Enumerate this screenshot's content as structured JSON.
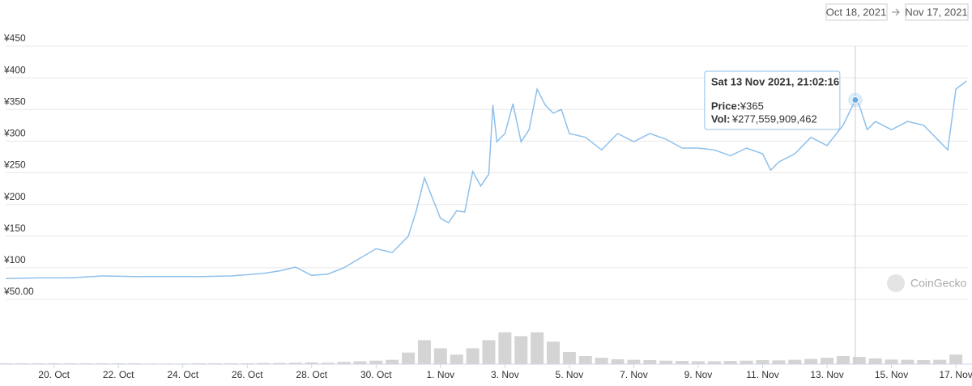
{
  "chart_data": {
    "type": "line",
    "range": [
      "Oct 18, 2021",
      "Nov 17, 2021"
    ],
    "watermark": "CoinGecko",
    "xlim": [
      "2021-10-18T12:00",
      "2021-11-17T09:00"
    ],
    "xticks": [
      {
        "value": "2021-10-20T00:00",
        "label": "20. Oct"
      },
      {
        "value": "2021-10-22T00:00",
        "label": "22. Oct"
      },
      {
        "value": "2021-10-24T00:00",
        "label": "24. Oct"
      },
      {
        "value": "2021-10-26T00:00",
        "label": "26. Oct"
      },
      {
        "value": "2021-10-28T00:00",
        "label": "28. Oct"
      },
      {
        "value": "2021-10-30T00:00",
        "label": "30. Oct"
      },
      {
        "value": "2021-11-01T00:00",
        "label": "1. Nov"
      },
      {
        "value": "2021-11-03T00:00",
        "label": "3. Nov"
      },
      {
        "value": "2021-11-05T00:00",
        "label": "5. Nov"
      },
      {
        "value": "2021-11-07T00:00",
        "label": "7. Nov"
      },
      {
        "value": "2021-11-09T00:00",
        "label": "9. Nov"
      },
      {
        "value": "2021-11-11T00:00",
        "label": "11. Nov"
      },
      {
        "value": "2021-11-13T00:00",
        "label": "13. Nov"
      },
      {
        "value": "2021-11-15T00:00",
        "label": "15. Nov"
      },
      {
        "value": "2021-11-17T00:00",
        "label": "17. Nov"
      }
    ],
    "ylim": [
      50,
      450
    ],
    "yticks": [
      {
        "value": 50,
        "label": "¥50.00"
      },
      {
        "value": 100,
        "label": "¥100"
      },
      {
        "value": 150,
        "label": "¥150"
      },
      {
        "value": 200,
        "label": "¥200"
      },
      {
        "value": 250,
        "label": "¥250"
      },
      {
        "value": 300,
        "label": "¥300"
      },
      {
        "value": 350,
        "label": "¥350"
      },
      {
        "value": 400,
        "label": "¥400"
      },
      {
        "value": 450,
        "label": "¥450"
      }
    ],
    "y2lim": [
      0,
      2800000000000.0
    ],
    "grid": true,
    "series": [
      {
        "type": "line",
        "color": "#8fc0ea",
        "x": [
          "2021-10-18T12:00",
          "2021-10-19T12:00",
          "2021-10-20T12:00",
          "2021-10-21T12:00",
          "2021-10-22T12:00",
          "2021-10-23T12:00",
          "2021-10-24T12:00",
          "2021-10-25T12:00",
          "2021-10-26T12:00",
          "2021-10-27T00:00",
          "2021-10-27T12:00",
          "2021-10-28T00:00",
          "2021-10-28T12:00",
          "2021-10-29T00:00",
          "2021-10-29T12:00",
          "2021-10-30T00:00",
          "2021-10-30T12:00",
          "2021-10-31T00:00",
          "2021-10-31T06:00",
          "2021-10-31T12:00",
          "2021-10-31T18:00",
          "2021-11-01T00:00",
          "2021-11-01T06:00",
          "2021-11-01T12:00",
          "2021-11-01T18:00",
          "2021-11-02T00:00",
          "2021-11-02T06:00",
          "2021-11-02T12:00",
          "2021-11-02T15:00",
          "2021-11-02T18:00",
          "2021-11-03T00:00",
          "2021-11-03T06:00",
          "2021-11-03T12:00",
          "2021-11-03T18:00",
          "2021-11-04T00:00",
          "2021-11-04T06:00",
          "2021-11-04T12:00",
          "2021-11-04T18:00",
          "2021-11-05T00:00",
          "2021-11-05T12:00",
          "2021-11-06T00:00",
          "2021-11-06T12:00",
          "2021-11-07T00:00",
          "2021-11-07T12:00",
          "2021-11-08T00:00",
          "2021-11-08T12:00",
          "2021-11-09T00:00",
          "2021-11-09T12:00",
          "2021-11-10T00:00",
          "2021-11-10T12:00",
          "2021-11-11T00:00",
          "2021-11-11T06:00",
          "2021-11-11T12:00",
          "2021-11-12T00:00",
          "2021-11-12T12:00",
          "2021-11-13T00:00",
          "2021-11-13T12:00",
          "2021-11-13T21:02:16",
          "2021-11-14T00:00",
          "2021-11-14T06:00",
          "2021-11-14T12:00",
          "2021-11-15T00:00",
          "2021-11-15T12:00",
          "2021-11-16T00:00",
          "2021-11-16T12:00",
          "2021-11-16T18:00",
          "2021-11-17T00:00",
          "2021-11-17T08:00"
        ],
        "values": [
          83,
          84,
          84,
          87,
          86,
          86,
          86,
          87,
          91,
          95,
          101,
          88,
          90,
          100,
          115,
          130,
          124,
          150,
          190,
          242,
          210,
          178,
          171,
          190,
          188,
          252,
          229,
          248,
          357,
          299,
          312,
          359,
          299,
          318,
          382,
          357,
          344,
          350,
          312,
          306,
          286,
          312,
          299,
          312,
          303,
          289,
          289,
          286,
          277,
          289,
          280,
          254,
          267,
          280,
          306,
          293,
          325,
          365,
          357,
          318,
          331,
          318,
          331,
          325,
          299,
          286,
          382,
          395
        ]
      },
      {
        "type": "bar",
        "axis": "y2",
        "color": "#d4d4d4",
        "x": [
          "2021-10-18T12:00",
          "2021-10-19T00:00",
          "2021-10-19T12:00",
          "2021-10-20T00:00",
          "2021-10-20T12:00",
          "2021-10-21T00:00",
          "2021-10-21T12:00",
          "2021-10-22T00:00",
          "2021-10-22T12:00",
          "2021-10-23T00:00",
          "2021-10-23T12:00",
          "2021-10-24T00:00",
          "2021-10-24T12:00",
          "2021-10-25T00:00",
          "2021-10-25T12:00",
          "2021-10-26T00:00",
          "2021-10-26T12:00",
          "2021-10-27T00:00",
          "2021-10-27T12:00",
          "2021-10-28T00:00",
          "2021-10-28T12:00",
          "2021-10-29T00:00",
          "2021-10-29T12:00",
          "2021-10-30T00:00",
          "2021-10-30T12:00",
          "2021-10-31T00:00",
          "2021-10-31T12:00",
          "2021-11-01T00:00",
          "2021-11-01T12:00",
          "2021-11-02T00:00",
          "2021-11-02T12:00",
          "2021-11-03T00:00",
          "2021-11-03T12:00",
          "2021-11-04T00:00",
          "2021-11-04T12:00",
          "2021-11-05T00:00",
          "2021-11-05T12:00",
          "2021-11-06T00:00",
          "2021-11-06T12:00",
          "2021-11-07T00:00",
          "2021-11-07T12:00",
          "2021-11-08T00:00",
          "2021-11-08T12:00",
          "2021-11-09T00:00",
          "2021-11-09T12:00",
          "2021-11-10T00:00",
          "2021-11-10T12:00",
          "2021-11-11T00:00",
          "2021-11-11T12:00",
          "2021-11-12T00:00",
          "2021-11-12T12:00",
          "2021-11-13T00:00",
          "2021-11-13T12:00",
          "2021-11-14T00:00",
          "2021-11-14T12:00",
          "2021-11-15T00:00",
          "2021-11-15T12:00",
          "2021-11-16T00:00",
          "2021-11-16T12:00",
          "2021-11-17T00:00"
        ],
        "values": [
          30000000000.0,
          30000000000.0,
          30000000000.0,
          30000000000.0,
          30000000000.0,
          30000000000.0,
          30000000000.0,
          30000000000.0,
          30000000000.0,
          20000000000.0,
          20000000000.0,
          20000000000.0,
          30000000000.0,
          30000000000.0,
          30000000000.0,
          30000000000.0,
          40000000000.0,
          40000000000.0,
          50000000000.0,
          60000000000.0,
          50000000000.0,
          80000000000.0,
          100000000000.0,
          120000000000.0,
          150000000000.0,
          400000000000.0,
          830000000000.0,
          550000000000.0,
          330000000000.0,
          550000000000.0,
          830000000000.0,
          1100000000000.0,
          970000000000.0,
          1100000000000.0,
          780000000000.0,
          420000000000.0,
          280000000000.0,
          220000000000.0,
          170000000000.0,
          150000000000.0,
          140000000000.0,
          120000000000.0,
          110000000000.0,
          100000000000.0,
          100000000000.0,
          110000000000.0,
          120000000000.0,
          140000000000.0,
          130000000000.0,
          150000000000.0,
          180000000000.0,
          220000000000.0,
          280000000000.0,
          250000000000.0,
          200000000000.0,
          160000000000.0,
          150000000000.0,
          140000000000.0,
          150000000000.0,
          330000000000.0
        ]
      }
    ],
    "tooltip": {
      "x": "2021-11-13T21:02:16",
      "date": "Sat 13 Nov 2021, 21:02:16",
      "price_label": "Price:",
      "price": {
        "value": 365,
        "label": "¥365"
      },
      "volume_label": "Vol:",
      "volume": {
        "value": 277559909462,
        "label": "¥277,559,909,462"
      }
    }
  }
}
